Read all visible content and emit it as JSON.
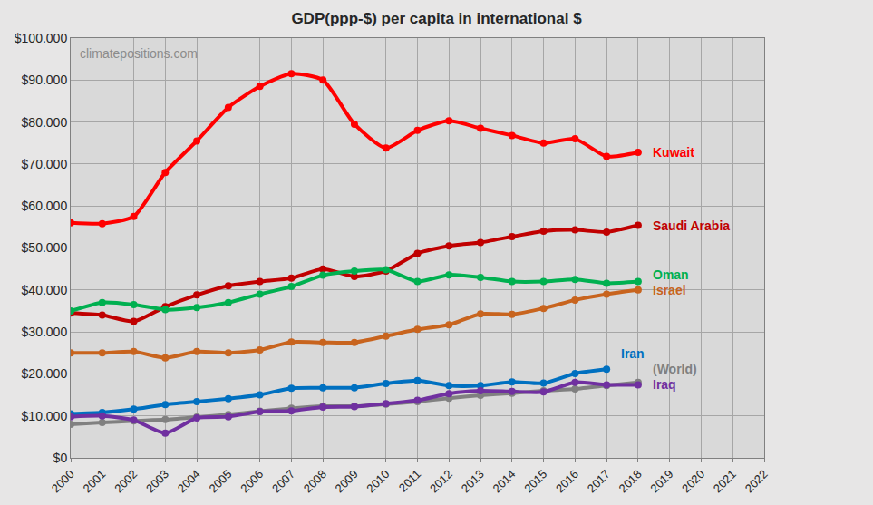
{
  "chart_data": {
    "type": "line",
    "title": "GDP(ppp-$) per capita in international $",
    "annotations": [
      "climatepositions.com"
    ],
    "x": [
      2000,
      2001,
      2002,
      2003,
      2004,
      2005,
      2006,
      2007,
      2008,
      2009,
      2010,
      2011,
      2012,
      2013,
      2014,
      2015,
      2016,
      2017,
      2018,
      2019,
      2020,
      2021,
      2022
    ],
    "xlim": [
      2000,
      2022
    ],
    "xticks": [
      2000,
      2001,
      2002,
      2003,
      2004,
      2005,
      2006,
      2007,
      2008,
      2009,
      2010,
      2011,
      2012,
      2013,
      2014,
      2015,
      2016,
      2017,
      2018,
      2019,
      2020,
      2021,
      2022
    ],
    "ylim": [
      0,
      100000
    ],
    "yticks": [
      {
        "value": 0,
        "label": "$0"
      },
      {
        "value": 10000,
        "label": "$10.000"
      },
      {
        "value": 20000,
        "label": "$20.000"
      },
      {
        "value": 30000,
        "label": "$30.000"
      },
      {
        "value": 40000,
        "label": "$40.000"
      },
      {
        "value": 50000,
        "label": "$50.000"
      },
      {
        "value": 60000,
        "label": "$60.000"
      },
      {
        "value": 70000,
        "label": "$70.000"
      },
      {
        "value": 80000,
        "label": "$80.000"
      },
      {
        "value": 90000,
        "label": "$90.000"
      },
      {
        "value": 100000,
        "label": "$100.000"
      }
    ],
    "grid": true,
    "marker": "circle",
    "line_style": "solid",
    "series": [
      {
        "name": "Kuwait",
        "color": "#ff0000",
        "values": [
          56000,
          55800,
          57500,
          68000,
          75500,
          83500,
          88500,
          91500,
          90000,
          79500,
          73800,
          78000,
          80300,
          78500,
          76800,
          75000,
          76000,
          71800,
          72800,
          null,
          null,
          null,
          null
        ]
      },
      {
        "name": "Saudi Arabia",
        "color": "#c00000",
        "values": [
          34500,
          34000,
          32500,
          36000,
          38800,
          41000,
          42000,
          42800,
          45000,
          43200,
          44500,
          48700,
          50500,
          51300,
          52700,
          54000,
          54300,
          53800,
          55400,
          null,
          null,
          null,
          null
        ]
      },
      {
        "name": "Oman",
        "color": "#00b050",
        "values": [
          35000,
          37000,
          36500,
          35300,
          35800,
          37000,
          39000,
          40800,
          43500,
          44500,
          44800,
          42000,
          43600,
          43000,
          42000,
          42000,
          42500,
          41600,
          42000,
          null,
          null,
          null,
          null
        ]
      },
      {
        "name": "Israel",
        "color": "#c8641e",
        "values": [
          25000,
          25000,
          25300,
          23800,
          25300,
          25000,
          25700,
          27600,
          27500,
          27500,
          29000,
          30600,
          31700,
          34300,
          34200,
          35600,
          37600,
          39000,
          40000,
          null,
          null,
          null,
          null
        ]
      },
      {
        "name": "Iran",
        "color": "#0070c0",
        "values": [
          10500,
          10800,
          11600,
          12700,
          13400,
          14100,
          15000,
          16600,
          16700,
          16700,
          17700,
          18400,
          17200,
          17200,
          18100,
          17800,
          20100,
          21100,
          null,
          null,
          null,
          null,
          null
        ]
      },
      {
        "name": "(World)",
        "color": "#808080",
        "values": [
          8000,
          8400,
          8800,
          9100,
          9700,
          10300,
          11100,
          11800,
          12300,
          12300,
          12800,
          13400,
          14200,
          14900,
          15400,
          16000,
          16400,
          17200,
          18000,
          null,
          null,
          null,
          null
        ]
      },
      {
        "name": "Iraq",
        "color": "#7030a0",
        "values": [
          9800,
          10000,
          9000,
          5900,
          9500,
          9800,
          11000,
          11200,
          12100,
          12200,
          12900,
          13700,
          15300,
          16000,
          15800,
          15700,
          18000,
          17400,
          17400,
          null,
          null,
          null,
          null
        ]
      }
    ]
  }
}
